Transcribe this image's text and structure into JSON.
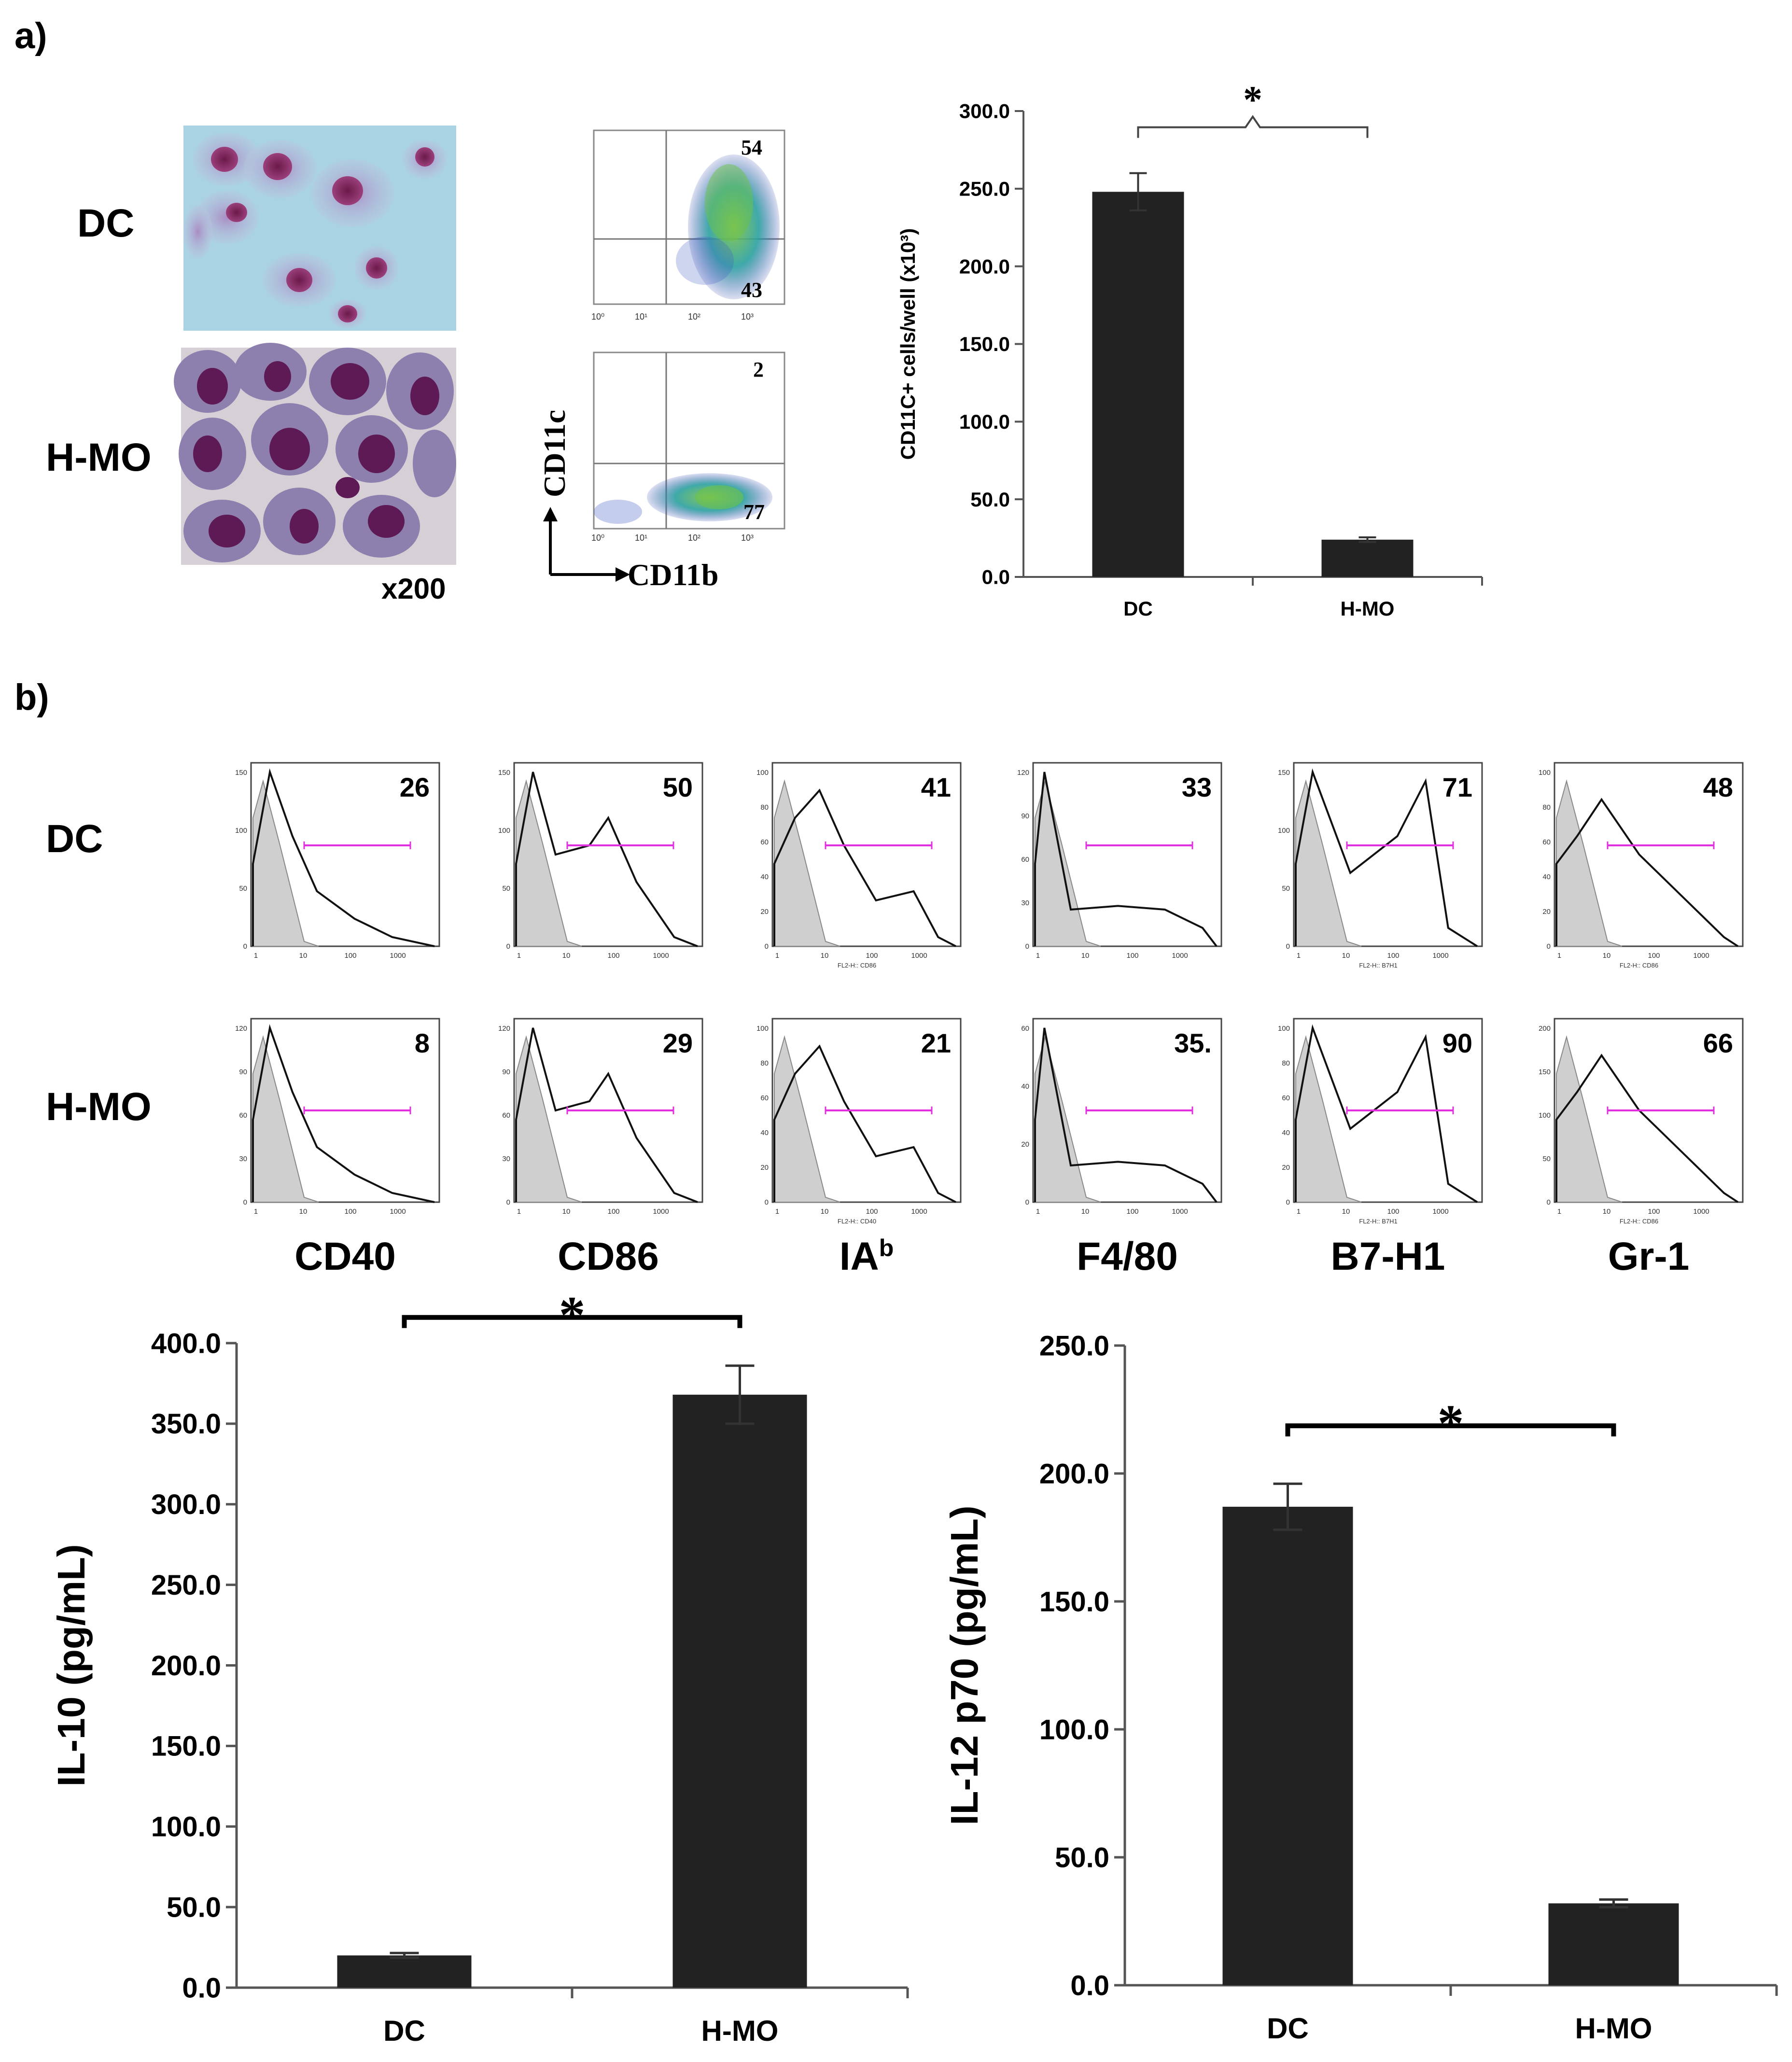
{
  "panel_a": {
    "label": "a)",
    "rows": [
      "DC",
      "H-MO"
    ],
    "magnification": "x200",
    "flow": {
      "y_axis_label": "CD11c",
      "x_axis_label": "CD11b",
      "tick_labels": [
        "10⁰",
        "10¹",
        "10²",
        "10³"
      ],
      "plots": [
        {
          "upper_right": "54",
          "lower_right": "43"
        },
        {
          "upper_right": "2",
          "lower_right": "77"
        }
      ]
    }
  },
  "panel_b": {
    "label": "b)",
    "rows": [
      "DC",
      "H-MO"
    ],
    "markers": [
      {
        "name": "CD40",
        "sup": "",
        "dc": "26",
        "hmo": "8",
        "dc_ticks": [
          "0",
          "50",
          "100",
          "150"
        ],
        "hmo_ticks": [
          "0",
          "30",
          "60",
          "90",
          "120"
        ]
      },
      {
        "name": "CD86",
        "sup": "",
        "dc": "50",
        "hmo": "29",
        "dc_ticks": [
          "0",
          "50",
          "100",
          "150"
        ],
        "hmo_ticks": [
          "0",
          "30",
          "60",
          "90",
          "120"
        ]
      },
      {
        "name": "IA",
        "sup": "b",
        "dc": "41",
        "hmo": "21",
        "dc_ticks": [
          "0",
          "20",
          "40",
          "60",
          "80",
          "100"
        ],
        "hmo_ticks": [
          "0",
          "20",
          "40",
          "60",
          "80",
          "100"
        ],
        "dc_axis_title": "FL2-H:: CD86",
        "hmo_axis_title": "FL2-H:: CD40"
      },
      {
        "name": "F4/80",
        "sup": "",
        "dc": "33",
        "hmo": "35.",
        "dc_ticks": [
          "0",
          "30",
          "60",
          "90",
          "120"
        ],
        "hmo_ticks": [
          "0",
          "20",
          "40",
          "60"
        ]
      },
      {
        "name": "B7-H1",
        "sup": "",
        "dc": "71",
        "hmo": "90",
        "dc_ticks": [
          "0",
          "50",
          "100",
          "150"
        ],
        "hmo_ticks": [
          "0",
          "20",
          "40",
          "60",
          "80",
          "100"
        ],
        "dc_axis_title": "FL2-H:: B7H1",
        "hmo_axis_title": "FL2-H:: B7H1"
      },
      {
        "name": "Gr-1",
        "sup": "",
        "dc": "48",
        "hmo": "66",
        "dc_ticks": [
          "0",
          "20",
          "40",
          "60",
          "80",
          "100"
        ],
        "hmo_ticks": [
          "0",
          "50",
          "100",
          "150",
          "200"
        ],
        "dc_axis_title": "FL2-H:: CD86",
        "hmo_axis_title": "FL2-H:: CD86"
      }
    ],
    "histogram_x_ticks": [
      "1",
      "10",
      "100",
      "1000"
    ]
  },
  "chart_data": [
    {
      "type": "bar",
      "id": "cd11c_counts",
      "title": "",
      "categories": [
        "DC",
        "H-MO"
      ],
      "values": [
        248.0,
        24.0
      ],
      "errors": [
        12.0,
        1.5
      ],
      "xlabel": "",
      "ylabel": "CD11C+ cells/well (x10³)",
      "ylim": [
        0,
        300
      ],
      "yticks": [
        "0.0",
        "50.0",
        "100.0",
        "150.0",
        "200.0",
        "250.0",
        "300.0"
      ],
      "significance": "*",
      "bar_color": "#222222"
    },
    {
      "type": "bar",
      "id": "il10",
      "title": "",
      "categories": [
        "DC",
        "H-MO"
      ],
      "values": [
        20.0,
        368.0
      ],
      "errors": [
        1.5,
        18.0
      ],
      "xlabel": "",
      "ylabel": "IL-10 (pg/mL)",
      "ylim": [
        0,
        400
      ],
      "yticks": [
        "0.0",
        "50.0",
        "100.0",
        "150.0",
        "200.0",
        "250.0",
        "300.0",
        "350.0",
        "400.0"
      ],
      "significance": "*",
      "bar_color": "#222222"
    },
    {
      "type": "bar",
      "id": "il12",
      "title": "",
      "categories": [
        "DC",
        "H-MO"
      ],
      "values": [
        187.0,
        32.0
      ],
      "errors": [
        9.0,
        1.5
      ],
      "xlabel": "",
      "ylabel": "IL-12 p70 (pg/mL)",
      "ylim": [
        0,
        250
      ],
      "yticks": [
        "0.0",
        "50.0",
        "100.0",
        "150.0",
        "200.0",
        "250.0"
      ],
      "significance": "*",
      "bar_color": "#222222"
    }
  ]
}
